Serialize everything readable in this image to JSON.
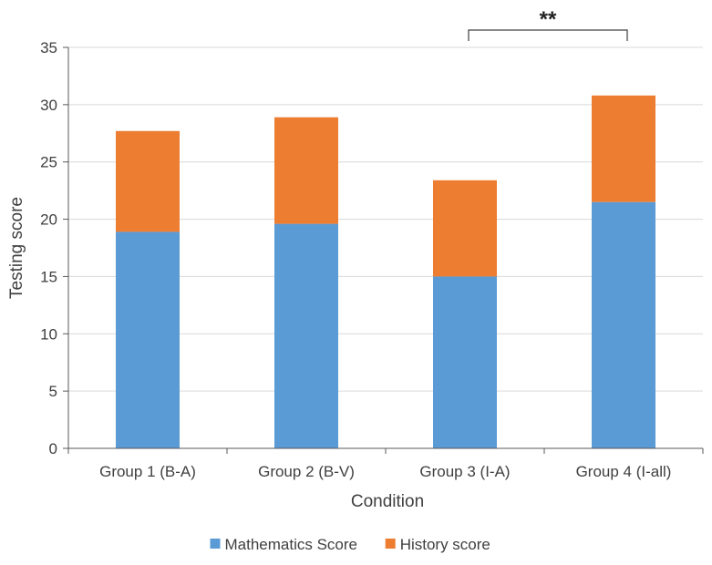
{
  "chart_data": {
    "type": "bar",
    "stacked": true,
    "title": "",
    "xlabel": "Condition",
    "ylabel": "Testing score",
    "ylim": [
      0,
      35
    ],
    "yticks": [
      0,
      5,
      10,
      15,
      20,
      25,
      30,
      35
    ],
    "grid": true,
    "legend_position": "bottom",
    "categories": [
      "Group 1 (B-A)",
      "Group 2 (B-V)",
      "Group 3 (I-A)",
      "Group 4 (I-all)"
    ],
    "series": [
      {
        "name": "Mathematics Score",
        "color": "#5B9BD5",
        "values": [
          18.9,
          19.6,
          15.0,
          21.5
        ]
      },
      {
        "name": "History score",
        "color": "#ED7D31",
        "values": [
          8.8,
          9.3,
          8.4,
          9.3
        ]
      }
    ],
    "annotations": [
      {
        "text": "**",
        "type": "significance-bracket",
        "from_category": "Group 3 (I-A)",
        "to_category": "Group 4 (I-all)"
      }
    ]
  }
}
